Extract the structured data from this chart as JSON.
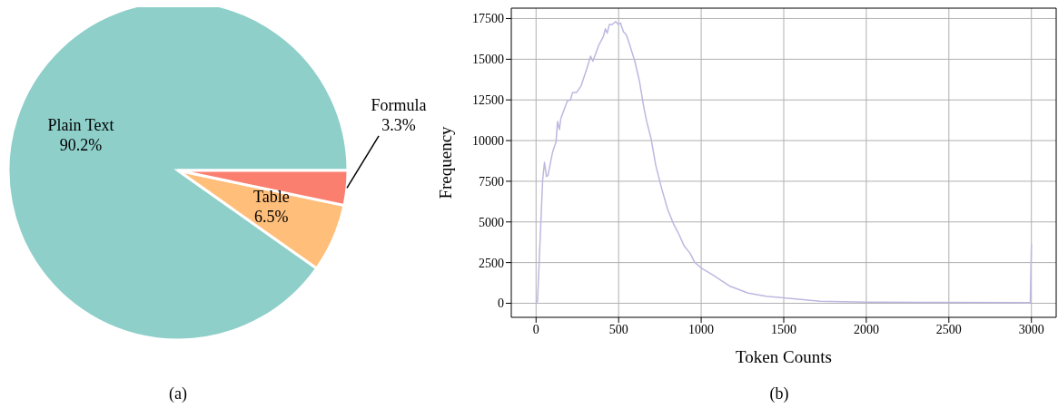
{
  "chart_data": [
    {
      "type": "pie",
      "categories": [
        "Plain Text",
        "Table",
        "Formula"
      ],
      "values": [
        90.2,
        6.5,
        3.3
      ],
      "colors": [
        "#8ecfc9",
        "#ffbe7a",
        "#fa7f6f"
      ],
      "value_labels": [
        "90.2%",
        "6.5%",
        "3.3%"
      ],
      "annotations": [
        "(a)"
      ]
    },
    {
      "type": "line",
      "xlabel": "Token Counts",
      "ylabel": "Frequency",
      "color": "#bcb8e0",
      "x": [
        0,
        9,
        40,
        51,
        63,
        72,
        100,
        121,
        130,
        141,
        150,
        190,
        208,
        221,
        245,
        272,
        308,
        330,
        344,
        380,
        408,
        420,
        431,
        444,
        462,
        482,
        498,
        511,
        529,
        547,
        562,
        598,
        625,
        652,
        670,
        697,
        725,
        761,
        797,
        833,
        861,
        897,
        933,
        960,
        1000,
        1067,
        1176,
        1284,
        1393,
        1500,
        1719,
        2000,
        2444,
        2993,
        3000
      ],
      "values": [
        0,
        140,
        7580,
        8660,
        7790,
        7850,
        9290,
        9920,
        11180,
        10680,
        11360,
        12450,
        12480,
        12950,
        12950,
        13350,
        14430,
        15190,
        14880,
        15870,
        16410,
        16870,
        16600,
        17140,
        17140,
        17320,
        17140,
        17230,
        16690,
        16500,
        16050,
        14880,
        13710,
        12090,
        11180,
        10100,
        8480,
        7040,
        5770,
        4870,
        4330,
        3520,
        3070,
        2530,
        2170,
        1760,
        1040,
        630,
        430,
        340,
        130,
        70,
        50,
        40,
        3630
      ],
      "xlim": [
        -150,
        3150
      ],
      "ylim": [
        -865,
        18140
      ],
      "xticks": [
        0,
        500,
        1000,
        1500,
        2000,
        2500,
        3000
      ],
      "yticks": [
        0,
        2500,
        5000,
        7500,
        10000,
        12500,
        15000,
        17500
      ],
      "grid": true,
      "annotations": [
        "(b)"
      ]
    }
  ]
}
